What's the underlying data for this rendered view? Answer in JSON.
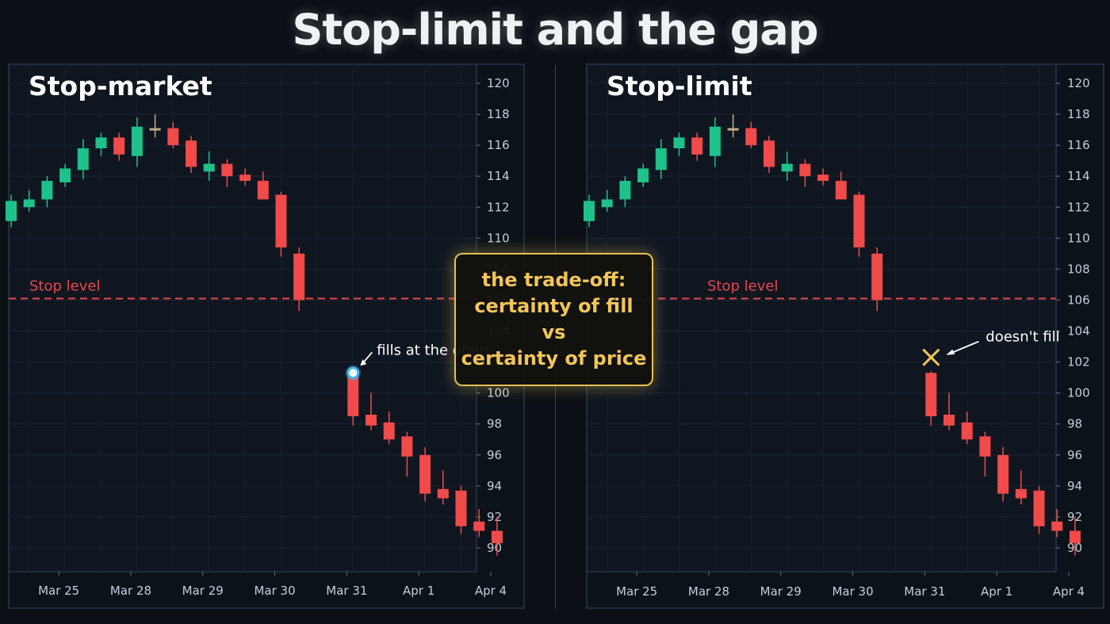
{
  "title": "Stop-limit and the gap",
  "tradeoff_box": {
    "line1": "the trade-off:",
    "line2": "certainty of fill",
    "line3": "vs",
    "line4": "certainty of price"
  },
  "colors": {
    "background": "#0b1016",
    "panel": "#0f1620",
    "up": "#1fc18a",
    "down": "#f04a4a",
    "neutral": "#c3ad84",
    "stop_line": "#e8464b",
    "fill_marker": "#3fb6e8",
    "no_fill_marker": "#f2c55a",
    "callout": "#e7bf55"
  },
  "chart_data": [
    {
      "type": "candlestick",
      "title": "Stop-market",
      "y_ticks": [
        90,
        92,
        94,
        96,
        98,
        100,
        102,
        104,
        106,
        108,
        110,
        112,
        114,
        116,
        118,
        120
      ],
      "ylim": [
        88.5,
        121.5
      ],
      "x_labels": [
        "Mar 25",
        "Mar 28",
        "Mar 29",
        "Mar 30",
        "Mar 31",
        "Apr 1",
        "Apr 4"
      ],
      "x_label_candle_index": [
        3,
        7,
        11,
        15,
        19,
        23,
        27
      ],
      "grid": true,
      "stop_level": {
        "value": 106.1,
        "label": "Stop level"
      },
      "annotation": {
        "type": "fill",
        "candle_index": 19,
        "value": 101.3,
        "text": "fills at the open"
      },
      "candles": [
        {
          "o": 111.1,
          "h": 112.8,
          "l": 110.7,
          "c": 112.4
        },
        {
          "o": 112.0,
          "h": 113.1,
          "l": 111.7,
          "c": 112.5
        },
        {
          "o": 112.5,
          "h": 114.0,
          "l": 112.0,
          "c": 113.7
        },
        {
          "o": 113.6,
          "h": 114.8,
          "l": 113.3,
          "c": 114.5
        },
        {
          "o": 114.4,
          "h": 116.4,
          "l": 113.8,
          "c": 115.8
        },
        {
          "o": 115.8,
          "h": 116.8,
          "l": 115.3,
          "c": 116.5
        },
        {
          "o": 116.5,
          "h": 116.8,
          "l": 115.0,
          "c": 115.4
        },
        {
          "o": 115.3,
          "h": 117.8,
          "l": 114.6,
          "c": 117.2
        },
        {
          "o": 117.1,
          "h": 118.0,
          "l": 116.5,
          "c": 117.0
        },
        {
          "o": 117.1,
          "h": 117.5,
          "l": 115.8,
          "c": 116.0
        },
        {
          "o": 116.3,
          "h": 116.6,
          "l": 114.2,
          "c": 114.6
        },
        {
          "o": 114.3,
          "h": 115.6,
          "l": 113.7,
          "c": 114.8
        },
        {
          "o": 114.8,
          "h": 115.1,
          "l": 113.3,
          "c": 114.0
        },
        {
          "o": 114.1,
          "h": 114.5,
          "l": 113.4,
          "c": 113.7
        },
        {
          "o": 113.7,
          "h": 114.3,
          "l": 112.5,
          "c": 112.5
        },
        {
          "o": 112.8,
          "h": 113.0,
          "l": 108.8,
          "c": 109.4
        },
        {
          "o": 109.0,
          "h": 109.4,
          "l": 105.3,
          "c": 106.0
        },
        {
          "o": 101.3,
          "h": 101.4,
          "l": 97.9,
          "c": 98.5
        },
        {
          "o": 98.6,
          "h": 100.0,
          "l": 97.6,
          "c": 97.9
        },
        {
          "o": 98.1,
          "h": 98.8,
          "l": 96.7,
          "c": 97.0
        },
        {
          "o": 97.2,
          "h": 97.5,
          "l": 94.6,
          "c": 95.9
        },
        {
          "o": 96.0,
          "h": 96.5,
          "l": 93.0,
          "c": 93.5
        },
        {
          "o": 93.8,
          "h": 95.0,
          "l": 92.8,
          "c": 93.2
        },
        {
          "o": 93.7,
          "h": 94.0,
          "l": 90.9,
          "c": 91.4
        },
        {
          "o": 91.7,
          "h": 92.5,
          "l": 90.7,
          "c": 91.1
        },
        {
          "o": 91.1,
          "h": 92.0,
          "l": 89.5,
          "c": 90.3
        }
      ]
    },
    {
      "type": "candlestick",
      "title": "Stop-limit",
      "y_ticks": [
        90,
        92,
        94,
        96,
        98,
        100,
        102,
        104,
        106,
        108,
        110,
        112,
        114,
        116,
        118,
        120
      ],
      "ylim": [
        88.5,
        121.5
      ],
      "x_labels": [
        "Mar 25",
        "Mar 28",
        "Mar 29",
        "Mar 30",
        "Mar 31",
        "Apr 1",
        "Apr 4"
      ],
      "x_label_candle_index": [
        3,
        7,
        11,
        15,
        19,
        23,
        27
      ],
      "grid": true,
      "stop_level": {
        "value": 106.1,
        "label": "Stop level"
      },
      "annotation": {
        "type": "no-fill",
        "candle_index": 19,
        "value": 102.3,
        "text": "doesn't fill"
      },
      "candles": [
        {
          "o": 111.1,
          "h": 112.8,
          "l": 110.7,
          "c": 112.4
        },
        {
          "o": 112.0,
          "h": 113.1,
          "l": 111.7,
          "c": 112.5
        },
        {
          "o": 112.5,
          "h": 114.0,
          "l": 112.0,
          "c": 113.7
        },
        {
          "o": 113.6,
          "h": 114.8,
          "l": 113.3,
          "c": 114.5
        },
        {
          "o": 114.4,
          "h": 116.4,
          "l": 113.8,
          "c": 115.8
        },
        {
          "o": 115.8,
          "h": 116.8,
          "l": 115.3,
          "c": 116.5
        },
        {
          "o": 116.5,
          "h": 116.8,
          "l": 115.0,
          "c": 115.4
        },
        {
          "o": 115.3,
          "h": 117.8,
          "l": 114.6,
          "c": 117.2
        },
        {
          "o": 117.1,
          "h": 118.0,
          "l": 116.5,
          "c": 117.0
        },
        {
          "o": 117.1,
          "h": 117.5,
          "l": 115.8,
          "c": 116.0
        },
        {
          "o": 116.3,
          "h": 116.6,
          "l": 114.2,
          "c": 114.6
        },
        {
          "o": 114.3,
          "h": 115.6,
          "l": 113.7,
          "c": 114.8
        },
        {
          "o": 114.8,
          "h": 115.1,
          "l": 113.3,
          "c": 114.0
        },
        {
          "o": 114.1,
          "h": 114.5,
          "l": 113.4,
          "c": 113.7
        },
        {
          "o": 113.7,
          "h": 114.3,
          "l": 112.5,
          "c": 112.5
        },
        {
          "o": 112.8,
          "h": 113.0,
          "l": 108.8,
          "c": 109.4
        },
        {
          "o": 109.0,
          "h": 109.4,
          "l": 105.3,
          "c": 106.0
        },
        {
          "o": 101.3,
          "h": 101.4,
          "l": 97.9,
          "c": 98.5
        },
        {
          "o": 98.6,
          "h": 100.0,
          "l": 97.6,
          "c": 97.9
        },
        {
          "o": 98.1,
          "h": 98.8,
          "l": 96.7,
          "c": 97.0
        },
        {
          "o": 97.2,
          "h": 97.5,
          "l": 94.6,
          "c": 95.9
        },
        {
          "o": 96.0,
          "h": 96.5,
          "l": 93.0,
          "c": 93.5
        },
        {
          "o": 93.8,
          "h": 95.0,
          "l": 92.8,
          "c": 93.2
        },
        {
          "o": 93.7,
          "h": 94.0,
          "l": 90.9,
          "c": 91.4
        },
        {
          "o": 91.7,
          "h": 92.5,
          "l": 90.7,
          "c": 91.1
        },
        {
          "o": 91.1,
          "h": 92.0,
          "l": 89.5,
          "c": 90.3
        }
      ]
    }
  ]
}
